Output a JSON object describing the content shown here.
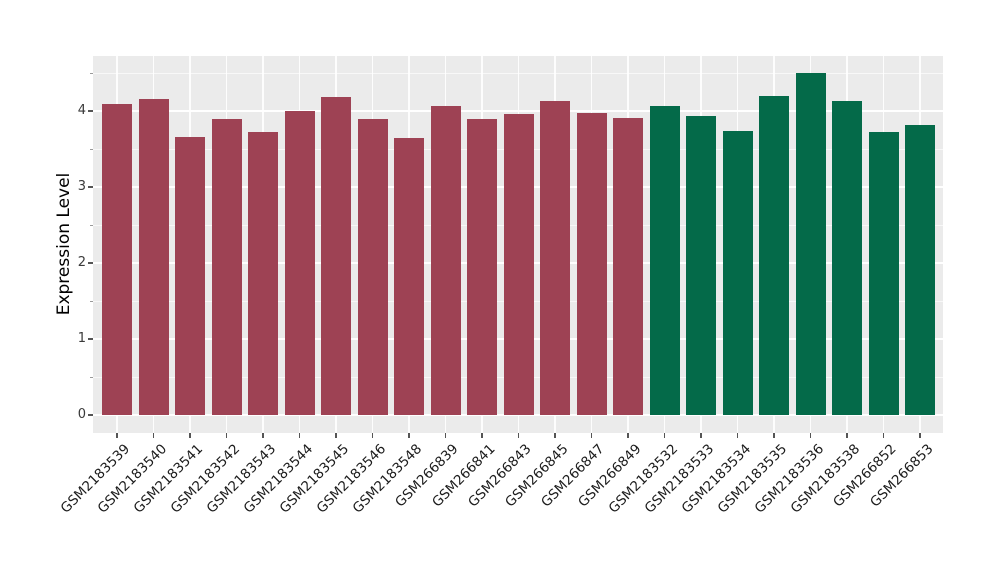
{
  "figure": {
    "background": "#FFFFFF"
  },
  "chart_data": {
    "type": "bar",
    "title": "",
    "xlabel": "",
    "ylabel": "Expression Level",
    "ylim": [
      0,
      4.72
    ],
    "yticks": [
      0,
      1,
      2,
      3,
      4
    ],
    "minor_ytick_interval": 0.5,
    "grid": true,
    "legend": false,
    "panel_background": "#EBEBEB",
    "gridline_color": "#FFFFFF",
    "bar_colors": {
      "red": "#9E4254",
      "green": "#046A49"
    },
    "bars": [
      {
        "label": "GSM2183539",
        "value": 4.09,
        "group": "red"
      },
      {
        "label": "GSM2183540",
        "value": 4.16,
        "group": "red"
      },
      {
        "label": "GSM2183541",
        "value": 3.66,
        "group": "red"
      },
      {
        "label": "GSM2183542",
        "value": 3.89,
        "group": "red"
      },
      {
        "label": "GSM2183543",
        "value": 3.72,
        "group": "red"
      },
      {
        "label": "GSM2183544",
        "value": 4.0,
        "group": "red"
      },
      {
        "label": "GSM2183545",
        "value": 4.19,
        "group": "red"
      },
      {
        "label": "GSM2183546",
        "value": 3.9,
        "group": "red"
      },
      {
        "label": "GSM2183548",
        "value": 3.65,
        "group": "red"
      },
      {
        "label": "GSM266839",
        "value": 4.07,
        "group": "red"
      },
      {
        "label": "GSM266841",
        "value": 3.9,
        "group": "red"
      },
      {
        "label": "GSM266843",
        "value": 3.96,
        "group": "red"
      },
      {
        "label": "GSM266845",
        "value": 4.13,
        "group": "red"
      },
      {
        "label": "GSM266847",
        "value": 3.98,
        "group": "red"
      },
      {
        "label": "GSM266849",
        "value": 3.91,
        "group": "red"
      },
      {
        "label": "GSM2183532",
        "value": 4.07,
        "group": "green"
      },
      {
        "label": "GSM2183533",
        "value": 3.94,
        "group": "green"
      },
      {
        "label": "GSM2183534",
        "value": 3.74,
        "group": "green"
      },
      {
        "label": "GSM2183535",
        "value": 4.2,
        "group": "green"
      },
      {
        "label": "GSM2183536",
        "value": 4.5,
        "group": "green"
      },
      {
        "label": "GSM2183538",
        "value": 4.13,
        "group": "green"
      },
      {
        "label": "GSM266852",
        "value": 3.73,
        "group": "green"
      },
      {
        "label": "GSM266853",
        "value": 3.82,
        "group": "green"
      }
    ]
  }
}
